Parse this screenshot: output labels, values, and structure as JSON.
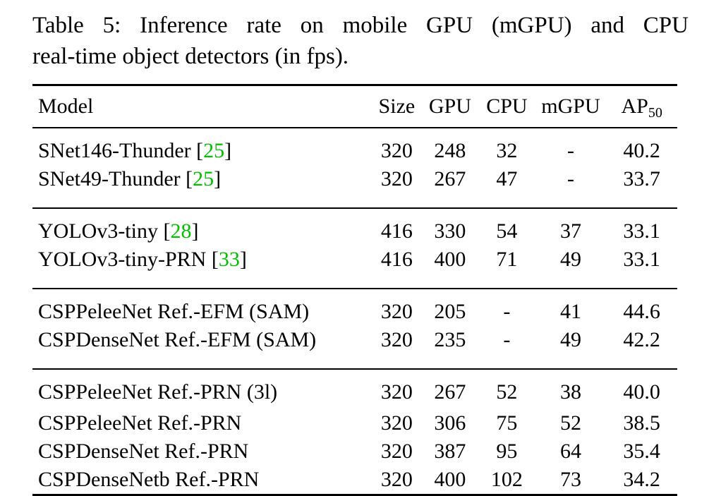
{
  "caption": {
    "line1": "Table 5:  Inference rate on mobile GPU (mGPU) and CPU",
    "line2": "real-time object detectors (in fps)."
  },
  "table": {
    "headers": {
      "model": "Model",
      "size": "Size",
      "gpu": "GPU",
      "cpu": "CPU",
      "mgpu": "mGPU",
      "ap": "AP",
      "ap_sub": "50"
    },
    "groups": [
      {
        "rows": [
          {
            "model": "SNet146-Thunder ",
            "open": "[",
            "cite": "25",
            "close": "]",
            "size": "320",
            "gpu": "248",
            "cpu": "32",
            "mgpu": "-",
            "ap": "40.2"
          },
          {
            "model": "SNet49-Thunder ",
            "open": "[",
            "cite": "25",
            "close": "]",
            "size": "320",
            "gpu": "267",
            "cpu": "47",
            "mgpu": "-",
            "ap": "33.7"
          }
        ]
      },
      {
        "rows": [
          {
            "model": "YOLOv3-tiny ",
            "open": "[",
            "cite": "28",
            "close": "]",
            "size": "416",
            "gpu": "330",
            "cpu": "54",
            "mgpu": "37",
            "ap": "33.1"
          },
          {
            "model": "YOLOv3-tiny-PRN ",
            "open": "[",
            "cite": "33",
            "close": "]",
            "size": "416",
            "gpu": "400",
            "cpu": "71",
            "mgpu": "49",
            "ap": "33.1"
          }
        ]
      },
      {
        "rows": [
          {
            "model": "CSPPeleeNet Ref.-EFM (SAM)",
            "size": "320",
            "gpu": "205",
            "cpu": "-",
            "mgpu": "41",
            "ap": "44.6"
          },
          {
            "model": "CSPDenseNet Ref.-EFM (SAM)",
            "size": "320",
            "gpu": "235",
            "cpu": "-",
            "mgpu": "49",
            "ap": "42.2"
          }
        ]
      },
      {
        "rows": [
          {
            "model": "CSPPeleeNet Ref.-PRN (3l)",
            "size": "320",
            "gpu": "267",
            "cpu": "52",
            "mgpu": "38",
            "ap": "40.0"
          },
          {
            "model": "CSPPeleeNet Ref.-PRN",
            "size": "320",
            "gpu": "306",
            "cpu": "75",
            "mgpu": "52",
            "ap": "38.5"
          },
          {
            "model": "CSPDenseNet Ref.-PRN",
            "size": "320",
            "gpu": "387",
            "cpu": "95",
            "mgpu": "64",
            "ap": "35.4"
          },
          {
            "model": "CSPDenseNetb Ref.-PRN",
            "size": "320",
            "gpu": "400",
            "cpu": "102",
            "mgpu": "73",
            "ap": "34.2"
          }
        ]
      }
    ]
  }
}
